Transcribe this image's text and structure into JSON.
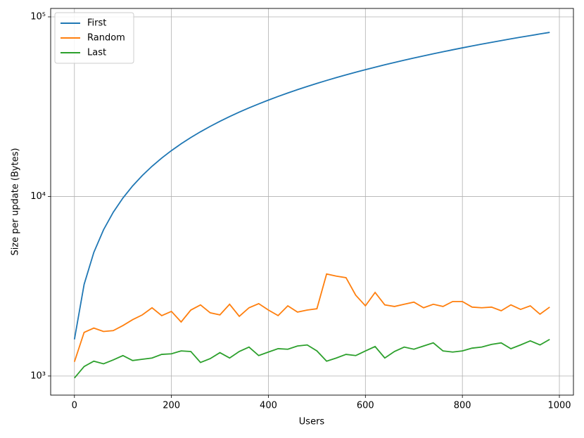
{
  "chart_data": {
    "type": "line",
    "x": [
      0,
      20,
      40,
      60,
      80,
      100,
      120,
      140,
      160,
      180,
      200,
      220,
      240,
      260,
      280,
      300,
      320,
      340,
      360,
      380,
      400,
      420,
      440,
      460,
      480,
      500,
      520,
      540,
      560,
      580,
      600,
      620,
      640,
      660,
      680,
      700,
      720,
      740,
      760,
      780,
      800,
      820,
      840,
      860,
      880,
      900,
      920,
      940,
      960,
      980
    ],
    "series": [
      {
        "name": "First",
        "color": "#1f77b4",
        "values": [
          1600,
          3240,
          4880,
          6520,
          8160,
          9800,
          11440,
          13080,
          14720,
          16360,
          18000,
          19640,
          21280,
          22920,
          24560,
          26200,
          27840,
          29480,
          31120,
          32760,
          34400,
          36040,
          37680,
          39320,
          40960,
          42600,
          44240,
          45880,
          47520,
          49160,
          50800,
          52440,
          54080,
          55720,
          57360,
          59000,
          60640,
          62280,
          63920,
          65560,
          67200,
          68840,
          70480,
          72120,
          73760,
          75400,
          77040,
          78680,
          80320,
          81960
        ]
      },
      {
        "name": "Random",
        "color": "#ff7f0e",
        "values": [
          1200,
          1750,
          1850,
          1770,
          1790,
          1910,
          2060,
          2190,
          2400,
          2170,
          2290,
          2000,
          2330,
          2490,
          2250,
          2190,
          2510,
          2150,
          2400,
          2530,
          2330,
          2170,
          2460,
          2270,
          2330,
          2370,
          3700,
          3600,
          3530,
          2820,
          2460,
          2920,
          2490,
          2440,
          2510,
          2580,
          2400,
          2510,
          2440,
          2600,
          2600,
          2420,
          2400,
          2420,
          2310,
          2490,
          2350,
          2460,
          2210,
          2420
        ]
      },
      {
        "name": "Last",
        "color": "#2ca02c",
        "values": [
          975,
          1130,
          1210,
          1170,
          1230,
          1300,
          1220,
          1240,
          1260,
          1320,
          1330,
          1380,
          1370,
          1190,
          1250,
          1350,
          1260,
          1370,
          1450,
          1300,
          1360,
          1420,
          1410,
          1470,
          1490,
          1380,
          1210,
          1260,
          1320,
          1300,
          1380,
          1460,
          1260,
          1370,
          1450,
          1410,
          1470,
          1530,
          1380,
          1360,
          1380,
          1430,
          1450,
          1500,
          1530,
          1420,
          1490,
          1570,
          1490,
          1600
        ]
      }
    ],
    "xlabel": "Users",
    "ylabel": "Size per update (Bytes)",
    "xlim": [
      -49,
      1029
    ],
    "ylim": [
      783,
      111400
    ],
    "xticks": [
      0,
      200,
      400,
      600,
      800,
      1000
    ],
    "yticks": [
      {
        "value": 1000,
        "label": "10³"
      },
      {
        "value": 10000,
        "label": "10⁴"
      },
      {
        "value": 100000,
        "label": "10⁵"
      }
    ],
    "yscale": "log",
    "grid": true,
    "legend": "upper left"
  }
}
